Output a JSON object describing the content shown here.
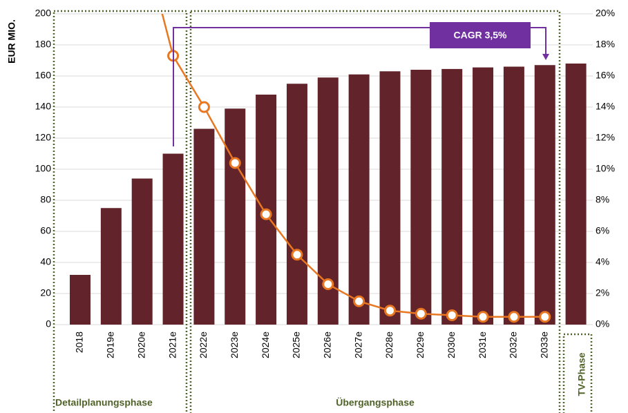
{
  "chart_data": {
    "type": "bar",
    "y_label": "EUR MIO.",
    "categories": [
      "2018",
      "2019e",
      "2020e",
      "2021e",
      "2022e",
      "2023e",
      "2024e",
      "2025e",
      "2026e",
      "2027e",
      "2028e",
      "2029e",
      "2030e",
      "2031e",
      "2032e",
      "2033e",
      null
    ],
    "series": [
      {
        "type": "bar",
        "color": "#62232a",
        "values": [
          32,
          75,
          94,
          110,
          126,
          139,
          148,
          155,
          159,
          161,
          163,
          164,
          164.5,
          165.5,
          166,
          167,
          168
        ]
      },
      {
        "type": "line",
        "axis": "y2",
        "color": "#e87722",
        "values": [
          null,
          null,
          25,
          17.3,
          14.0,
          10.4,
          7.1,
          4.5,
          2.6,
          1.5,
          0.9,
          0.7,
          0.6,
          0.5,
          0.5,
          0.5,
          null
        ]
      }
    ],
    "ylim": [
      0,
      200
    ],
    "yticks": [
      0,
      20,
      40,
      60,
      80,
      100,
      120,
      140,
      160,
      180,
      200
    ],
    "y2lim": [
      0,
      20
    ],
    "y2ticks": [
      {
        "value": 0,
        "label": "0%"
      },
      {
        "value": 2,
        "label": "2%"
      },
      {
        "value": 4,
        "label": "4%"
      },
      {
        "value": 6,
        "label": "6%"
      },
      {
        "value": 8,
        "label": "8%"
      },
      {
        "value": 10,
        "label": "10%"
      },
      {
        "value": 12,
        "label": "12%"
      },
      {
        "value": 14,
        "label": "14%"
      },
      {
        "value": 16,
        "label": "16%"
      },
      {
        "value": 18,
        "label": "18%"
      },
      {
        "value": 20,
        "label": "20%"
      }
    ],
    "grid": true,
    "annotation": "CAGR 3,5%",
    "phases": [
      "Detailplanungsphase",
      "Übergangsphase",
      "TV-Phase"
    ]
  }
}
